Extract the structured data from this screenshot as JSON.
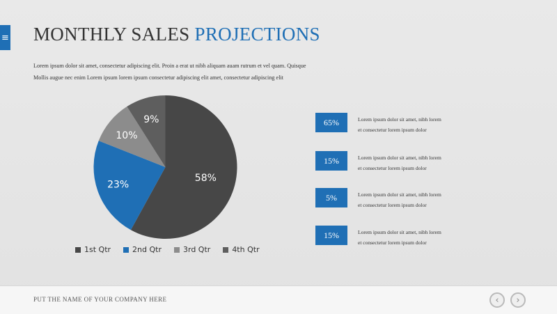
{
  "menu": {
    "icon": "hamburger-menu-icon",
    "glyph": "≡"
  },
  "title": {
    "main": "MONTHLY SALES",
    "accent": "PROJECTIONS"
  },
  "intro": {
    "line1": "Lorem ipsum dolor sit amet, consectetur adipiscing elit. Proin a erat ut nibh aliquam auam rutrum et vel quam. Quisque",
    "line2": "Mollis augue nec enim Lorem ipsum lorem ipsum consectetur adipiscing elit amet, consectetur adipiscing elit"
  },
  "colors": {
    "accent": "#1f6fb5",
    "dark": "#474747",
    "mid": "#8c8c8c",
    "darkgray": "#5e5e5e"
  },
  "chart_data": {
    "type": "pie",
    "title": "",
    "slices": [
      {
        "name": "1st Qtr",
        "value": 58,
        "label": "58%",
        "color": "#474747"
      },
      {
        "name": "2nd Qtr",
        "value": 23,
        "label": "23%",
        "color": "#1f6fb5"
      },
      {
        "name": "3rd Qtr",
        "value": 10,
        "label": "10%",
        "color": "#8c8c8c"
      },
      {
        "name": "4th Qtr",
        "value": 9,
        "label": "9%",
        "color": "#5e5e5e"
      }
    ],
    "legend_position": "bottom"
  },
  "stats": [
    {
      "value": "65%",
      "line1": "Lorem ipsum dolor sit amet, nibh lorem",
      "line2": "et consectetur lorem ipsum dolor"
    },
    {
      "value": "15%",
      "line1": "Lorem ipsum dolor sit amet, nibh lorem",
      "line2": "et consectetur lorem ipsum dolor"
    },
    {
      "value": "5%",
      "line1": "Lorem ipsum dolor sit amet, nibh lorem",
      "line2": "et consectetur lorem ipsum dolor"
    },
    {
      "value": "15%",
      "line1": "Lorem ipsum dolor sit amet, nibh lorem",
      "line2": "et consectetur lorem ipsum dolor"
    }
  ],
  "footer": {
    "company": "PUT THE NAME OF YOUR COMPANY HERE",
    "prev_icon": "chevron-left-icon",
    "next_icon": "chevron-right-icon",
    "prev_glyph": "‹",
    "next_glyph": "›"
  }
}
